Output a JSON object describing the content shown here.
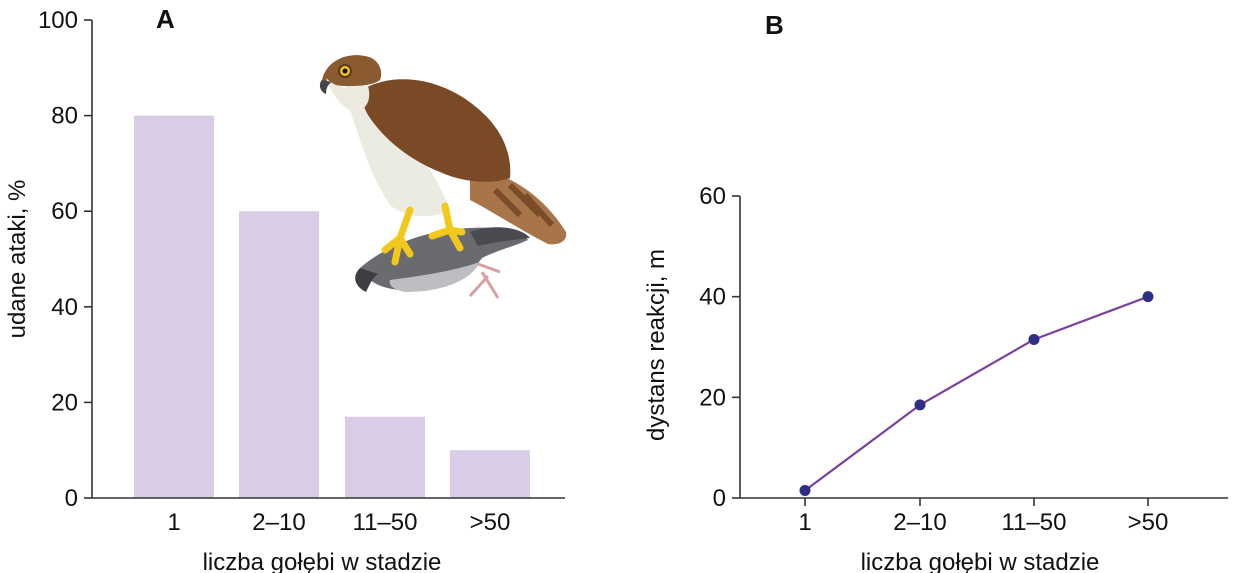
{
  "chart_data": [
    {
      "type": "bar",
      "panel_label": "A",
      "categories": [
        "1",
        "2–10",
        "11–50",
        ">50"
      ],
      "values": [
        80,
        60,
        17,
        10
      ],
      "xlabel": "liczba gołębi w stadzie",
      "ylabel": "udane ataki, %",
      "ylim": [
        0,
        100
      ],
      "yticks": [
        "0",
        "20",
        "40",
        "60",
        "80",
        "100"
      ],
      "bar_color": "#d9cce6",
      "grid": false,
      "illustration": "hawk-with-pigeon-prey"
    },
    {
      "type": "line",
      "panel_label": "B",
      "categories": [
        "1",
        "2–10",
        "11–50",
        ">50"
      ],
      "values": [
        1.5,
        18.5,
        31.5,
        40
      ],
      "xlabel": "liczba gołębi w stadzie",
      "ylabel": "dystans reakcji, m",
      "ylim": [
        0,
        60
      ],
      "yticks": [
        "0",
        "20",
        "40",
        "60"
      ],
      "line_color": "#7b3fa0",
      "marker_color": "#2e2e82",
      "grid": false
    }
  ]
}
